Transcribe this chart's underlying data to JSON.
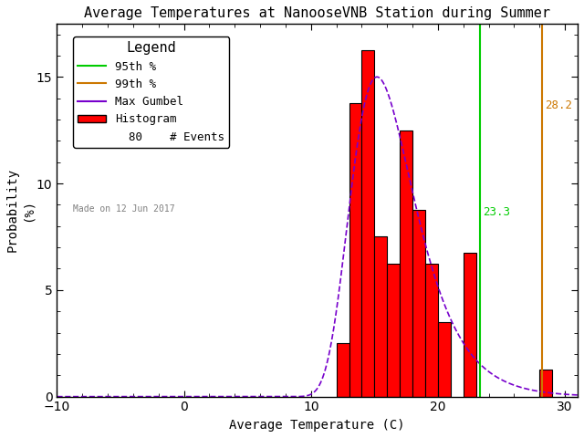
{
  "title": "Average Temperatures at NanooseVNB Station during Summer",
  "xlabel": "Average Temperature (C)",
  "ylabel": "Probability\n(%)",
  "xlim": [
    -10,
    31
  ],
  "ylim": [
    0,
    17.5
  ],
  "xticks": [
    -10,
    0,
    10,
    20,
    30
  ],
  "yticks": [
    0,
    5,
    10,
    15
  ],
  "bar_lefts": [
    12,
    13,
    14,
    15,
    16,
    17,
    18,
    19,
    20,
    21,
    22,
    28
  ],
  "bar_widths": [
    1,
    1,
    1,
    1,
    1,
    1,
    1,
    1,
    1,
    1,
    1,
    1
  ],
  "bar_heights": [
    2.5,
    13.75,
    16.25,
    7.5,
    6.25,
    12.5,
    8.75,
    6.25,
    3.5,
    0.0,
    6.75,
    1.25
  ],
  "bar_color": "#ff0000",
  "bar_edgecolor": "#000000",
  "gumbel_mu": 15.2,
  "gumbel_beta": 2.5,
  "gumbel_peak_target": 15.0,
  "p95_x": 23.3,
  "p99_x": 28.2,
  "p95_color": "#00cc00",
  "p99_color": "#cc7700",
  "gumbel_color": "#7700cc",
  "n_events": 80,
  "made_on": "Made on 12 Jun 2017",
  "legend_title": "Legend",
  "background_color": "#ffffff"
}
